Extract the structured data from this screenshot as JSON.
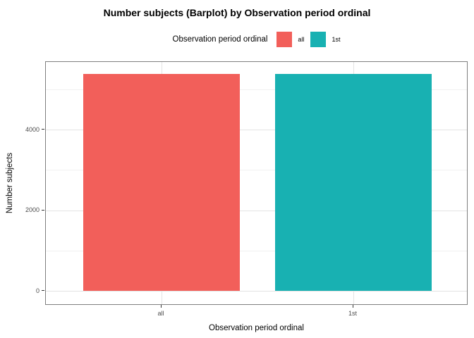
{
  "title": "Number subjects (Barplot) by Observation period ordinal",
  "legend": {
    "title": "Observation period ordinal",
    "items": [
      {
        "label": "all",
        "color": "#F25F5A"
      },
      {
        "label": "1st",
        "color": "#18B1B2"
      }
    ]
  },
  "chart_data": {
    "type": "bar",
    "title": "Number subjects (Barplot) by Observation period ordinal",
    "categories": [
      "all",
      "1st"
    ],
    "values": [
      5380,
      5380
    ],
    "bar_colors": [
      "#F25F5A",
      "#18B1B2"
    ],
    "xlabel": "Observation period ordinal",
    "ylabel": "Number subjects",
    "yticks": [
      0,
      2000,
      4000
    ],
    "yticks_minor": [
      1000,
      3000,
      5000
    ],
    "ylim": [
      0,
      5677
    ],
    "legend_title": "Observation period ordinal",
    "legend_position": "top",
    "grid": true,
    "colors": {
      "grid_major": "#e3e3e3",
      "grid_minor": "#f1f1f1",
      "panel_border": "#7e7e7e",
      "tick": "#333333",
      "tick_label": "#4d4d4d",
      "background": "#ffffff"
    }
  }
}
